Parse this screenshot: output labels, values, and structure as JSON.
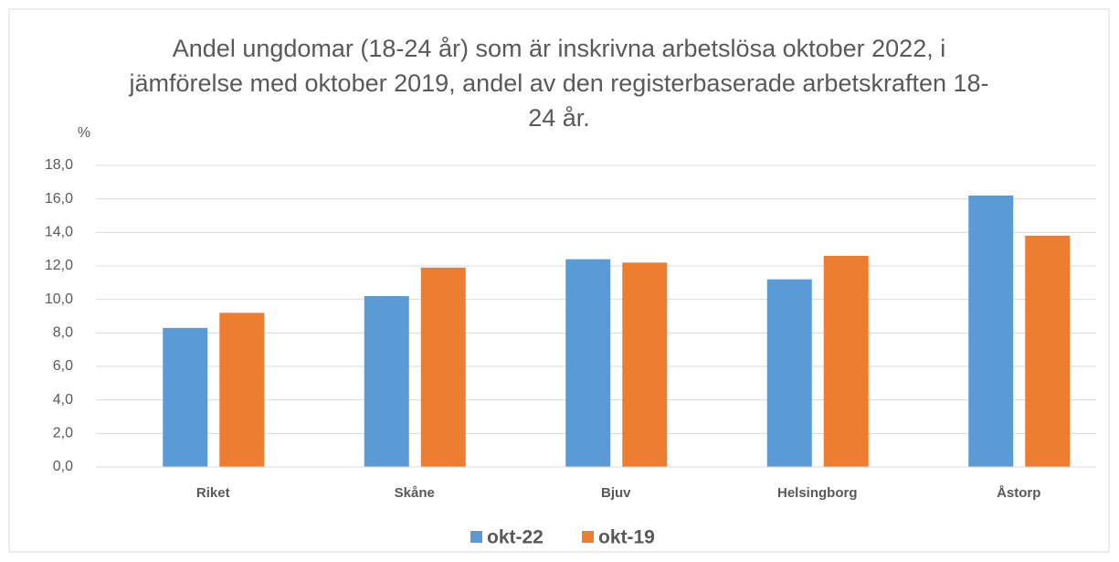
{
  "chart_data": {
    "type": "bar",
    "title": "Andel ungdomar (18-24 år) som är inskrivna arbetslösa oktober 2022, i jämförelse med oktober 2019, andel av den registerbaserade arbetskraften 18-24 år.",
    "y_label": "%",
    "categories": [
      "Riket",
      "Skåne",
      "Bjuv",
      "Helsingborg",
      "Åstorp"
    ],
    "series": [
      {
        "name": "okt-22",
        "color": "#5b9bd5",
        "values": [
          8.3,
          10.2,
          12.4,
          11.2,
          16.2
        ]
      },
      {
        "name": "okt-19",
        "color": "#ed7d31",
        "values": [
          9.2,
          11.9,
          12.2,
          12.6,
          13.8
        ]
      }
    ],
    "ylim": [
      0,
      18
    ],
    "yticks": [
      {
        "value": 0,
        "label": "0,0"
      },
      {
        "value": 2,
        "label": "2,0"
      },
      {
        "value": 4,
        "label": "4,0"
      },
      {
        "value": 6,
        "label": "6,0"
      },
      {
        "value": 8,
        "label": "8,0"
      },
      {
        "value": 10,
        "label": "10,0"
      },
      {
        "value": 12,
        "label": "12,0"
      },
      {
        "value": 14,
        "label": "14,0"
      },
      {
        "value": 16,
        "label": "16,0"
      },
      {
        "value": 18,
        "label": "18,0"
      }
    ],
    "grid": true,
    "legend": "bottom"
  }
}
